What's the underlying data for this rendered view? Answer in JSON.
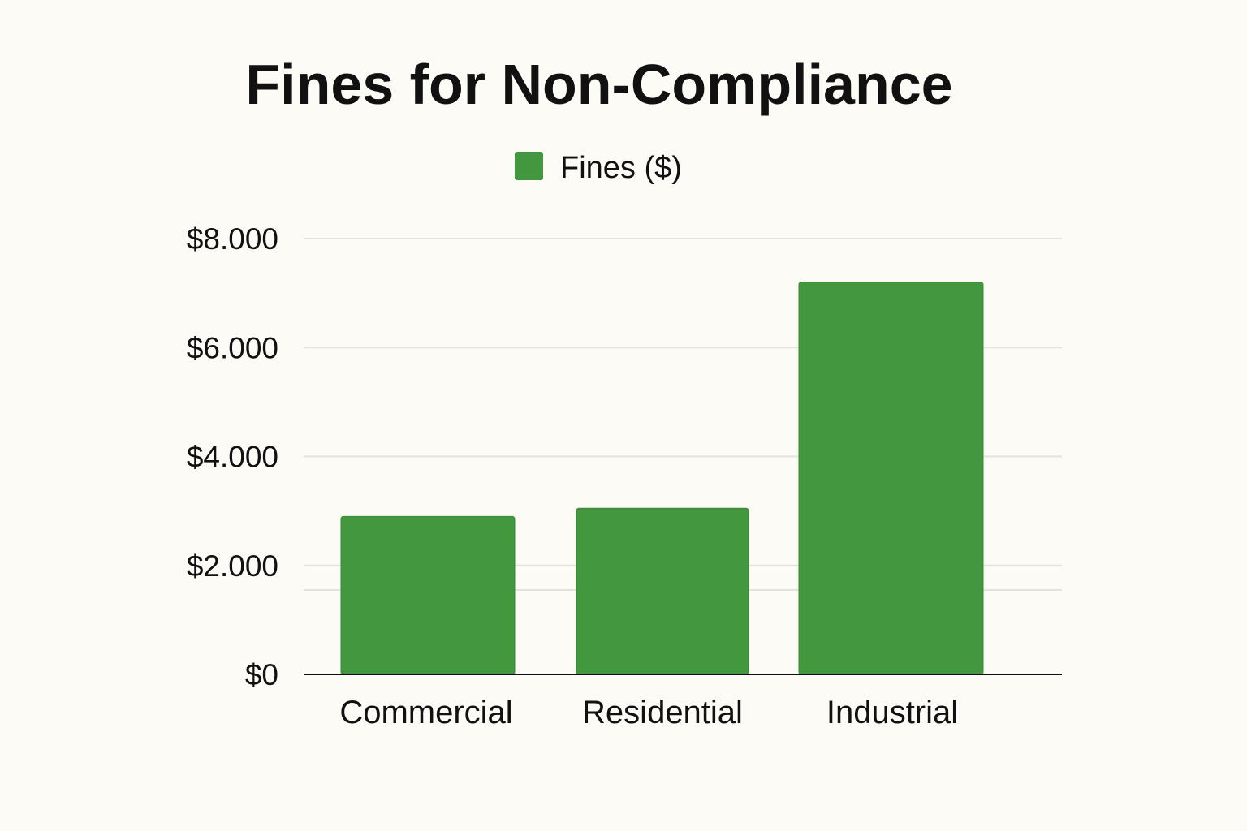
{
  "chart_data": {
    "type": "bar",
    "title": "Fines for Non-Compliance",
    "xlabel": "",
    "ylabel": "",
    "categories": [
      "Commercial",
      "Residential",
      "Industrial"
    ],
    "series": [
      {
        "name": "Fines ($)",
        "values": [
          2900,
          3050,
          7200
        ],
        "color": "#43973f"
      }
    ],
    "ylim": [
      0,
      8000
    ],
    "yticks": [
      {
        "value": 0,
        "label": "$0"
      },
      {
        "value": 2000,
        "label": "$2.000"
      },
      {
        "value": 4000,
        "label": "$4.000"
      },
      {
        "value": 6000,
        "label": "$6.000"
      },
      {
        "value": 8000,
        "label": "$8.000"
      }
    ],
    "gridlines": [
      2000,
      4000,
      6000,
      8000
    ],
    "grid": true,
    "legend_position": "top-center"
  },
  "colors": {
    "background": "#fcfbf5",
    "bar": "#43973f",
    "grid": "#e3e3dc",
    "axis": "#111111"
  }
}
